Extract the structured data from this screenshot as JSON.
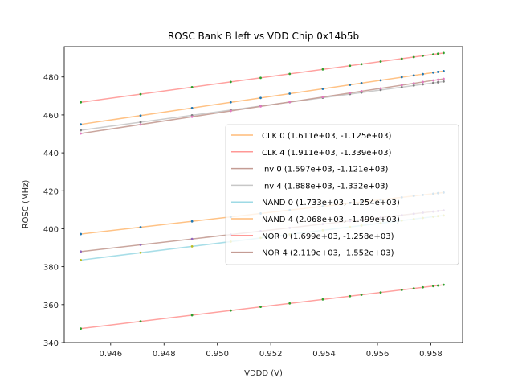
{
  "chart_data": {
    "type": "line",
    "title": "ROSC Bank B left vs VDD Chip 0x14b5b",
    "xlabel": "VDDD (V)",
    "ylabel": "ROSC (MHz)",
    "xlim": [
      0.94426,
      0.95919
    ],
    "ylim": [
      340,
      496
    ],
    "xticks": [
      "0.946",
      "0.948",
      "0.950",
      "0.952",
      "0.954",
      "0.956",
      "0.958"
    ],
    "xtick_values": [
      0.946,
      0.948,
      0.95,
      0.952,
      0.954,
      0.956,
      0.958
    ],
    "yticks": [
      "340",
      "360",
      "380",
      "400",
      "420",
      "440",
      "460",
      "480"
    ],
    "ytick_values": [
      340,
      360,
      380,
      400,
      420,
      440,
      460,
      480
    ],
    "grid": false,
    "legend_position": "center-right",
    "x": [
      0.94488,
      0.94712,
      0.94905,
      0.9505,
      0.95162,
      0.95271,
      0.95395,
      0.95497,
      0.9554,
      0.95612,
      0.95691,
      0.95736,
      0.9577,
      0.95809,
      0.95827,
      0.95848
    ],
    "series": [
      {
        "name": "CLK 0",
        "legend": "CLK 0 (1.611e+03, -1.125e+03)",
        "slope": 1611,
        "intercept": -1125,
        "color": "#ffbb78",
        "marker_color": "#1f77b4"
      },
      {
        "name": "CLK 4",
        "legend": "CLK 4 (1.911e+03, -1.339e+03)",
        "slope": 1911,
        "intercept": -1339,
        "color": "#ff9896",
        "marker_color": "#2ca02c"
      },
      {
        "name": "Inv 0",
        "legend": "Inv 0 (1.597e+03, -1.121e+03)",
        "slope": 1597,
        "intercept": -1121,
        "color": "#c49c94",
        "marker_color": "#9467bd"
      },
      {
        "name": "Inv 4",
        "legend": "Inv 4 (1.888e+03, -1.332e+03)",
        "slope": 1888,
        "intercept": -1332,
        "color": "#c7c7c7",
        "marker_color": "#7f7f7f"
      },
      {
        "name": "NAND 0",
        "legend": "NAND 0 (1.733e+03, -1.254e+03)",
        "slope": 1733,
        "intercept": -1254,
        "color": "#9edae5",
        "marker_color": "#bcbd22"
      },
      {
        "name": "NAND 4",
        "legend": "NAND 4 (2.068e+03, -1.499e+03)",
        "slope": 2068,
        "intercept": -1499,
        "color": "#ffbb78",
        "marker_color": "#1f77b4"
      },
      {
        "name": "NOR 0",
        "legend": "NOR 0 (1.699e+03, -1.258e+03)",
        "slope": 1699,
        "intercept": -1258,
        "color": "#e377c2",
        "line_color": "#ff9896",
        "marker_color": "#2ca02c"
      },
      {
        "name": "NOR 4",
        "legend": "NOR 4 (2.119e+03, -1.552e+03)",
        "slope": 2119,
        "intercept": -1552,
        "color": "#c49c94",
        "marker_color": "#e377c2"
      }
    ]
  }
}
